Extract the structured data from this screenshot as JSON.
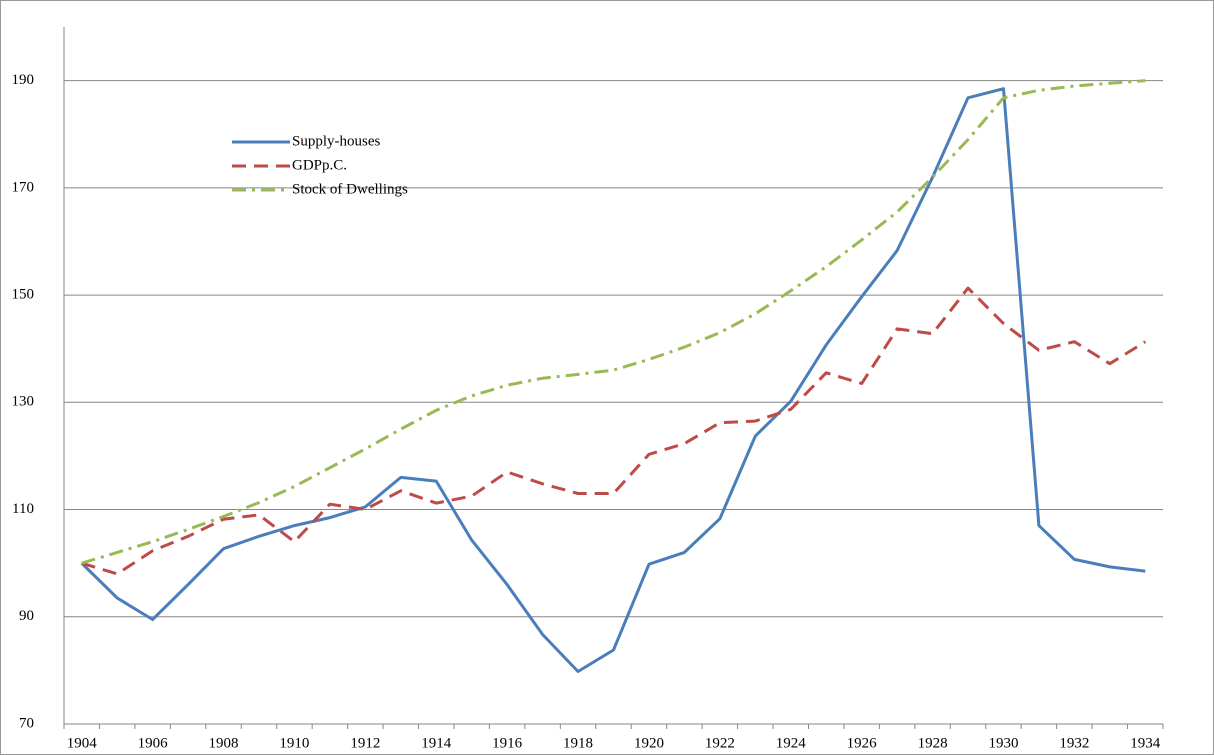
{
  "chart_data": {
    "type": "line",
    "categories": [
      "1904",
      null,
      "1906",
      null,
      "1908",
      null,
      "1910",
      null,
      "1912",
      null,
      "1914",
      null,
      "1916",
      null,
      "1918",
      null,
      "1920",
      null,
      "1922",
      null,
      "1924",
      null,
      "1926",
      null,
      "1928",
      null,
      "1930",
      null,
      "1932",
      null,
      "1934"
    ],
    "series": [
      {
        "name": "Supply-houses",
        "color": "#4a7ebb",
        "dash": "solid",
        "values": [
          100,
          93.5,
          89.5,
          96,
          102.7,
          105,
          107,
          108.5,
          110.5,
          116,
          115.3,
          104.3,
          96,
          86.7,
          79.8,
          83.8,
          99.8,
          102,
          108.3,
          123.7,
          130.2,
          140.7,
          149.7,
          158.3,
          172,
          186.8,
          188.5,
          107,
          100.7,
          99.3,
          98.5
        ]
      },
      {
        "name": "GDPp.C.",
        "color": "#be4b48",
        "dash": "dashed",
        "values": [
          100,
          98,
          102.3,
          105,
          108.2,
          109,
          104,
          111,
          110,
          113.5,
          111.2,
          112.5,
          117,
          114.8,
          113,
          113,
          120.3,
          122.3,
          126.2,
          126.5,
          128.7,
          135.5,
          133.5,
          143.7,
          142.8,
          151.3,
          144.7,
          139.7,
          141.3,
          137.2,
          141.3
        ]
      },
      {
        "name": "Stock of Dwellings",
        "color": "#98b954",
        "dash": "dashdot",
        "values": [
          100,
          102,
          104,
          106.3,
          108.7,
          111.3,
          114.3,
          117.8,
          121.3,
          125,
          128.5,
          131.2,
          133.2,
          134.5,
          135.2,
          136,
          138,
          140.3,
          143,
          146.5,
          150.8,
          155.3,
          160.3,
          165.5,
          172,
          179,
          186.8,
          188.2,
          189,
          189.5,
          190
        ]
      }
    ],
    "ylim": [
      70,
      200
    ],
    "yticks": [
      70,
      90,
      110,
      130,
      150,
      170,
      190
    ],
    "grid": true,
    "legend": "upper left"
  }
}
